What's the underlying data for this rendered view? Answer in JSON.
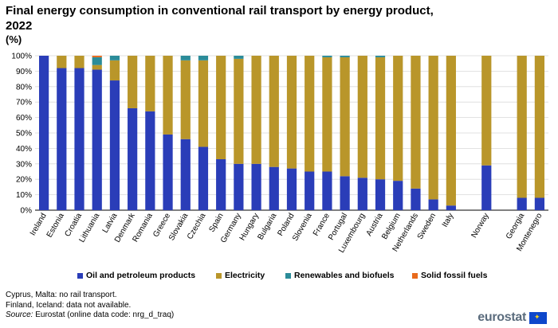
{
  "header": {
    "title": "Final energy consumption in conventional rail transport by energy product, 2022",
    "unit": "(%)"
  },
  "colors": {
    "oil": "#2a3db8",
    "electricity": "#b9962a",
    "renewables": "#2b8c99",
    "solid": "#e86a1c",
    "grid": "#d9d9d9"
  },
  "chart_data": {
    "type": "bar",
    "stacked": true,
    "title": "Final energy consumption in conventional rail transport by energy product, 2022",
    "ylabel": "(%)",
    "ylim": [
      0,
      100
    ],
    "yticks": [
      "0%",
      "10%",
      "20%",
      "30%",
      "40%",
      "50%",
      "60%",
      "70%",
      "80%",
      "90%",
      "100%"
    ],
    "categories": [
      "Ireland",
      "Estonia",
      "Croatia",
      "Lithuania",
      "Latvia",
      "Denmark",
      "Romania",
      "Greece",
      "Slovakia",
      "Czechia",
      "Spain",
      "Germany",
      "Hungary",
      "Bulgaria",
      "Poland",
      "Slovenia",
      "France",
      "Portugal",
      "Luxembourg",
      "Austria",
      "Belgium",
      "Netherlands",
      "Sweden",
      "Italy",
      "",
      "Norway",
      "",
      "Georgia",
      "Montenegro"
    ],
    "series": [
      {
        "name": "Oil and petroleum products",
        "values": [
          100,
          92,
          92,
          91,
          84,
          66,
          64,
          49,
          46,
          41,
          33,
          30,
          30,
          28,
          27,
          25,
          25,
          22,
          21,
          20,
          19,
          14,
          7,
          3,
          null,
          29,
          null,
          8,
          8
        ]
      },
      {
        "name": "Electricity",
        "values": [
          0,
          8,
          8,
          3,
          13,
          34,
          36,
          51,
          51,
          56,
          67,
          68,
          70,
          72,
          73,
          75,
          74,
          77,
          79,
          79,
          81,
          86,
          93,
          97,
          null,
          71,
          null,
          92,
          92
        ]
      },
      {
        "name": "Renewables and biofuels",
        "values": [
          0,
          0,
          0,
          5,
          3,
          0,
          0,
          0,
          3,
          3,
          0,
          2,
          0,
          0,
          0,
          0,
          1,
          1,
          0,
          1,
          0,
          0,
          0,
          0,
          null,
          0,
          null,
          0,
          0
        ]
      },
      {
        "name": "Solid fossil fuels",
        "values": [
          0,
          0,
          0,
          1,
          0,
          0,
          0,
          0,
          0,
          0,
          0,
          0,
          0,
          0,
          0,
          0,
          0,
          0,
          0,
          0,
          0,
          0,
          0,
          0,
          null,
          0,
          null,
          0,
          0
        ]
      }
    ],
    "legend": [
      "Oil and petroleum products",
      "Electricity",
      "Renewables and biofuels",
      "Solid fossil fuels"
    ],
    "grid": true
  },
  "footer": {
    "note1": "Cyprus, Malta: no rail transport.",
    "note2": "Finland,  Iceland: data not available.",
    "source_label": "Source:",
    "source_text": " Eurostat (online data code: nrg_d_traq)",
    "logo": "eurostat"
  }
}
